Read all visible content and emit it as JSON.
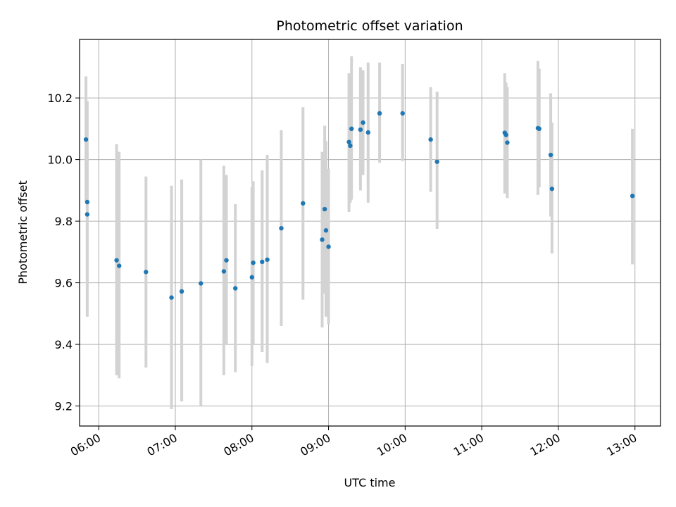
{
  "chart_data": {
    "type": "scatter",
    "title": "Photometric offset variation",
    "xlabel": "UTC time",
    "ylabel": "Photometric offset",
    "x_axis_type": "time",
    "xlim": [
      "05:45",
      "13:20"
    ],
    "ylim": [
      9.135,
      10.39
    ],
    "xticks": [
      "06:00",
      "07:00",
      "08:00",
      "09:00",
      "10:00",
      "11:00",
      "12:00",
      "13:00"
    ],
    "yticks": [
      9.2,
      9.4,
      9.6,
      9.8,
      10.0,
      10.2
    ],
    "grid": true,
    "colors": {
      "point": "#1f77b4",
      "errorbar": "#d3d3d3",
      "grid": "#b0b0b0"
    },
    "points": [
      {
        "x": "05:50",
        "y": 10.065,
        "ylow": 9.865,
        "yhigh": 10.27
      },
      {
        "x": "05:51",
        "y": 9.862,
        "ylow": 9.49,
        "yhigh": 10.19
      },
      {
        "x": "05:51",
        "y": 9.822,
        "ylow": 9.6,
        "yhigh": 10.02
      },
      {
        "x": "06:14",
        "y": 9.673,
        "ylow": 9.3,
        "yhigh": 10.05
      },
      {
        "x": "06:16",
        "y": 9.655,
        "ylow": 9.29,
        "yhigh": 10.025
      },
      {
        "x": "06:37",
        "y": 9.635,
        "ylow": 9.325,
        "yhigh": 9.945
      },
      {
        "x": "06:57",
        "y": 9.552,
        "ylow": 9.19,
        "yhigh": 9.915
      },
      {
        "x": "07:05",
        "y": 9.572,
        "ylow": 9.215,
        "yhigh": 9.935
      },
      {
        "x": "07:20",
        "y": 9.598,
        "ylow": 9.2,
        "yhigh": 10.0
      },
      {
        "x": "07:38",
        "y": 9.637,
        "ylow": 9.3,
        "yhigh": 9.98
      },
      {
        "x": "07:40",
        "y": 9.673,
        "ylow": 9.4,
        "yhigh": 9.95
      },
      {
        "x": "07:47",
        "y": 9.582,
        "ylow": 9.31,
        "yhigh": 9.855
      },
      {
        "x": "08:00",
        "y": 9.618,
        "ylow": 9.33,
        "yhigh": 9.91
      },
      {
        "x": "08:01",
        "y": 9.665,
        "ylow": 9.4,
        "yhigh": 9.93
      },
      {
        "x": "08:08",
        "y": 9.668,
        "ylow": 9.375,
        "yhigh": 9.965
      },
      {
        "x": "08:12",
        "y": 9.675,
        "ylow": 9.34,
        "yhigh": 10.015
      },
      {
        "x": "08:23",
        "y": 9.777,
        "ylow": 9.46,
        "yhigh": 10.095
      },
      {
        "x": "08:40",
        "y": 9.858,
        "ylow": 9.545,
        "yhigh": 10.17
      },
      {
        "x": "08:55",
        "y": 9.74,
        "ylow": 9.455,
        "yhigh": 10.025
      },
      {
        "x": "08:57",
        "y": 9.839,
        "ylow": 9.565,
        "yhigh": 10.11
      },
      {
        "x": "08:58",
        "y": 9.77,
        "ylow": 9.49,
        "yhigh": 10.06
      },
      {
        "x": "09:00",
        "y": 9.717,
        "ylow": 9.465,
        "yhigh": 9.97
      },
      {
        "x": "09:16",
        "y": 10.057,
        "ylow": 9.83,
        "yhigh": 10.28
      },
      {
        "x": "09:17",
        "y": 10.045,
        "ylow": 9.86,
        "yhigh": 10.23
      },
      {
        "x": "09:18",
        "y": 10.1,
        "ylow": 9.87,
        "yhigh": 10.335
      },
      {
        "x": "09:25",
        "y": 10.097,
        "ylow": 9.9,
        "yhigh": 10.3
      },
      {
        "x": "09:27",
        "y": 10.12,
        "ylow": 9.95,
        "yhigh": 10.29
      },
      {
        "x": "09:31",
        "y": 10.088,
        "ylow": 9.86,
        "yhigh": 10.315
      },
      {
        "x": "09:40",
        "y": 10.15,
        "ylow": 9.99,
        "yhigh": 10.315
      },
      {
        "x": "09:58",
        "y": 10.15,
        "ylow": 9.995,
        "yhigh": 10.31
      },
      {
        "x": "10:20",
        "y": 10.065,
        "ylow": 9.895,
        "yhigh": 10.235
      },
      {
        "x": "10:25",
        "y": 9.993,
        "ylow": 9.775,
        "yhigh": 10.22
      },
      {
        "x": "11:18",
        "y": 10.087,
        "ylow": 9.89,
        "yhigh": 10.28
      },
      {
        "x": "11:19",
        "y": 10.08,
        "ylow": 9.905,
        "yhigh": 10.25
      },
      {
        "x": "11:20",
        "y": 10.055,
        "ylow": 9.875,
        "yhigh": 10.235
      },
      {
        "x": "11:44",
        "y": 10.102,
        "ylow": 9.885,
        "yhigh": 10.32
      },
      {
        "x": "11:45",
        "y": 10.1,
        "ylow": 9.91,
        "yhigh": 10.295
      },
      {
        "x": "11:54",
        "y": 10.015,
        "ylow": 9.815,
        "yhigh": 10.215
      },
      {
        "x": "11:55",
        "y": 9.905,
        "ylow": 9.695,
        "yhigh": 10.12
      },
      {
        "x": "12:58",
        "y": 9.882,
        "ylow": 9.66,
        "yhigh": 10.1
      }
    ]
  }
}
